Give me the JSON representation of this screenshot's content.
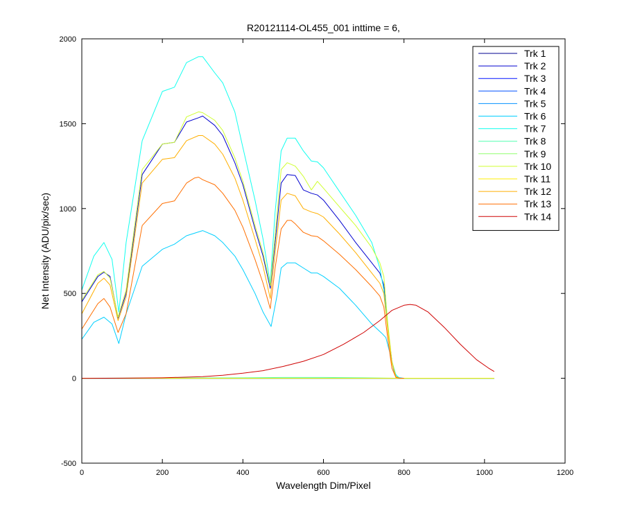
{
  "chart_data": {
    "type": "line",
    "title": "R20121114-OL455_001 inttime = 6,",
    "xlabel": "Wavelength Dim/Pixel",
    "ylabel": "Net Intensity (ADU/pix/sec)",
    "xlim": [
      0,
      1200
    ],
    "ylim": [
      -500,
      2000
    ],
    "xticks": [
      0,
      200,
      400,
      600,
      800,
      1000,
      1200
    ],
    "yticks": [
      -500,
      0,
      500,
      1000,
      1500,
      2000
    ],
    "x_tick_labels": [
      "0",
      "200",
      "400",
      "600",
      "800",
      "1000",
      "1200"
    ],
    "y_tick_labels": [
      "-500",
      "0",
      "500",
      "1000",
      "1500",
      "2000"
    ],
    "grid": false,
    "legend_position": "top-right",
    "series": [
      {
        "name": "Trk 1",
        "color": "#00008F",
        "x": [
          0,
          200,
          400,
          600,
          800,
          1024
        ],
        "y": [
          0,
          0,
          0,
          0,
          0,
          0
        ]
      },
      {
        "name": "Trk 2",
        "color": "#0000CF",
        "x": [
          0,
          40,
          55,
          70,
          90,
          110,
          150,
          200,
          230,
          260,
          290,
          300,
          330,
          350,
          380,
          400,
          430,
          450,
          468,
          480,
          495,
          510,
          530,
          550,
          570,
          585,
          600,
          640,
          680,
          720,
          740,
          750,
          760,
          770,
          780,
          790,
          800
        ],
        "y": [
          450,
          600,
          625,
          600,
          355,
          500,
          1200,
          1380,
          1390,
          1510,
          1535,
          1545,
          1490,
          1430,
          1270,
          1140,
          880,
          720,
          530,
          800,
          1150,
          1200,
          1195,
          1110,
          1090,
          1080,
          1050,
          930,
          800,
          680,
          620,
          550,
          300,
          100,
          10,
          0,
          0
        ]
      },
      {
        "name": "Trk 3",
        "color": "#0010FF",
        "x": [
          0,
          200,
          400,
          600,
          800,
          1024
        ],
        "y": [
          0,
          0,
          0,
          0,
          0,
          0
        ]
      },
      {
        "name": "Trk 4",
        "color": "#0050FF",
        "x": [
          0,
          200,
          400,
          600,
          800,
          1024
        ],
        "y": [
          0,
          0,
          0,
          0,
          0,
          0
        ]
      },
      {
        "name": "Trk 5",
        "color": "#0090FF",
        "x": [
          0,
          200,
          400,
          600,
          800,
          1024
        ],
        "y": [
          0,
          0,
          0,
          0,
          0,
          0
        ]
      },
      {
        "name": "Trk 6",
        "color": "#00CFFF",
        "x": [
          0,
          30,
          55,
          75,
          92,
          110,
          150,
          200,
          230,
          260,
          300,
          330,
          350,
          380,
          400,
          430,
          450,
          470,
          485,
          495,
          510,
          530,
          550,
          570,
          585,
          600,
          640,
          680,
          720,
          745,
          755,
          765,
          775,
          785,
          800
        ],
        "y": [
          230,
          330,
          360,
          320,
          205,
          380,
          660,
          760,
          790,
          840,
          870,
          840,
          800,
          720,
          640,
          500,
          390,
          305,
          490,
          650,
          680,
          680,
          650,
          620,
          620,
          600,
          530,
          430,
          320,
          265,
          240,
          150,
          40,
          5,
          0
        ]
      },
      {
        "name": "Trk 7",
        "color": "#10FFEF",
        "x": [
          0,
          30,
          55,
          75,
          92,
          110,
          150,
          200,
          230,
          260,
          290,
          300,
          330,
          350,
          380,
          400,
          430,
          450,
          468,
          480,
          495,
          510,
          530,
          550,
          570,
          585,
          600,
          640,
          680,
          720,
          740,
          750,
          760,
          770,
          780,
          790,
          800
        ],
        "y": [
          520,
          720,
          800,
          700,
          390,
          800,
          1400,
          1690,
          1715,
          1860,
          1895,
          1895,
          1800,
          1740,
          1570,
          1360,
          1050,
          820,
          560,
          980,
          1340,
          1415,
          1415,
          1340,
          1280,
          1275,
          1240,
          1100,
          960,
          800,
          650,
          520,
          300,
          100,
          20,
          0,
          0
        ]
      },
      {
        "name": "Trk 8",
        "color": "#50FFAF",
        "x": [
          0,
          200,
          400,
          500,
          600,
          700,
          800,
          1024
        ],
        "y": [
          0,
          2,
          3,
          5,
          5,
          3,
          0,
          0
        ]
      },
      {
        "name": "Trk 9",
        "color": "#90FF6F",
        "x": [
          0,
          200,
          400,
          600,
          800,
          1024
        ],
        "y": [
          0,
          0,
          0,
          0,
          0,
          0
        ]
      },
      {
        "name": "Trk 10",
        "color": "#CFFF2F",
        "x": [
          0,
          40,
          55,
          70,
          90,
          110,
          150,
          200,
          230,
          260,
          290,
          300,
          330,
          350,
          380,
          400,
          430,
          450,
          468,
          480,
          495,
          510,
          530,
          550,
          570,
          585,
          600,
          640,
          680,
          720,
          740,
          750,
          760,
          770,
          780,
          790,
          800
        ],
        "y": [
          460,
          610,
          630,
          590,
          360,
          520,
          1230,
          1380,
          1390,
          1540,
          1570,
          1565,
          1520,
          1460,
          1300,
          1160,
          900,
          740,
          545,
          840,
          1230,
          1270,
          1250,
          1190,
          1110,
          1160,
          1120,
          1010,
          900,
          770,
          680,
          600,
          320,
          100,
          10,
          0,
          0
        ]
      },
      {
        "name": "Trk 11",
        "color": "#FFEF00",
        "x": [
          0,
          200,
          400,
          600,
          800,
          1024
        ],
        "y": [
          0,
          0,
          0,
          0,
          0,
          0
        ]
      },
      {
        "name": "Trk 12",
        "color": "#FFAF00",
        "x": [
          0,
          40,
          55,
          70,
          90,
          110,
          150,
          200,
          230,
          260,
          290,
          300,
          330,
          350,
          380,
          400,
          430,
          450,
          468,
          480,
          495,
          510,
          530,
          550,
          570,
          585,
          600,
          640,
          680,
          720,
          740,
          750,
          760,
          770,
          780,
          790,
          800
        ],
        "y": [
          380,
          560,
          590,
          550,
          340,
          480,
          1150,
          1290,
          1300,
          1400,
          1430,
          1430,
          1380,
          1320,
          1180,
          1050,
          820,
          660,
          470,
          740,
          1050,
          1090,
          1075,
          1000,
          980,
          970,
          950,
          850,
          740,
          620,
          560,
          500,
          280,
          90,
          8,
          0,
          0
        ]
      },
      {
        "name": "Trk 13",
        "color": "#FF6F00",
        "x": [
          0,
          40,
          55,
          70,
          90,
          110,
          150,
          200,
          230,
          260,
          280,
          290,
          300,
          330,
          350,
          380,
          400,
          430,
          450,
          468,
          480,
          495,
          510,
          520,
          530,
          550,
          570,
          585,
          600,
          640,
          680,
          720,
          740,
          750,
          760,
          770,
          780,
          790,
          800
        ],
        "y": [
          290,
          440,
          470,
          420,
          270,
          380,
          900,
          1030,
          1045,
          1150,
          1180,
          1185,
          1170,
          1140,
          1090,
          990,
          890,
          700,
          560,
          410,
          650,
          880,
          930,
          930,
          910,
          860,
          840,
          835,
          810,
          730,
          640,
          540,
          485,
          420,
          230,
          60,
          5,
          0,
          0
        ]
      },
      {
        "name": "Trk 14",
        "color": "#CF0000",
        "x": [
          0,
          100,
          200,
          300,
          350,
          400,
          450,
          500,
          550,
          600,
          650,
          700,
          740,
          770,
          800,
          815,
          830,
          860,
          900,
          940,
          980,
          1010,
          1024
        ],
        "y": [
          0,
          1,
          3,
          10,
          18,
          30,
          45,
          70,
          100,
          140,
          200,
          270,
          340,
          400,
          430,
          435,
          430,
          390,
          300,
          200,
          110,
          60,
          40
        ]
      }
    ]
  }
}
